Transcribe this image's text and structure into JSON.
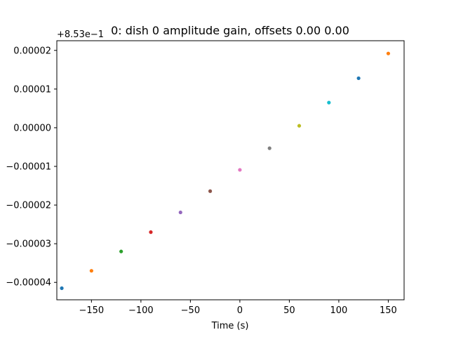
{
  "chart_data": {
    "type": "scatter",
    "title": "0: dish 0 amplitude gain, offsets 0.00 0.00",
    "xlabel": "Time (s)",
    "ylabel": "",
    "offset_label": "+8.53e−1",
    "xlim": [
      -185,
      166
    ],
    "ylim": [
      -4.45e-05,
      2.25e-05
    ],
    "grid": false,
    "x_ticks": [
      -150,
      -100,
      -50,
      0,
      50,
      100,
      150
    ],
    "x_tick_labels": [
      "−150",
      "−100",
      "−50",
      "0",
      "50",
      "100",
      "150"
    ],
    "y_ticks": [
      2e-05,
      1e-05,
      0.0,
      -1e-05,
      -2e-05,
      -3e-05,
      -4e-05
    ],
    "y_tick_labels": [
      "0.00002",
      "0.00001",
      "0.00000",
      "−0.00001",
      "−0.00002",
      "−0.00003",
      "−0.00004"
    ],
    "points": [
      {
        "x": -180,
        "y": -4.15e-05,
        "color": "#1f77b4"
      },
      {
        "x": -150,
        "y": -3.7e-05,
        "color": "#ff7f0e"
      },
      {
        "x": -120,
        "y": -3.2e-05,
        "color": "#2ca02c"
      },
      {
        "x": -90,
        "y": -2.7e-05,
        "color": "#d62728"
      },
      {
        "x": -60,
        "y": -2.19e-05,
        "color": "#9467bd"
      },
      {
        "x": -30,
        "y": -1.64e-05,
        "color": "#8c564b"
      },
      {
        "x": 0,
        "y": -1.09e-05,
        "color": "#e377c2"
      },
      {
        "x": 30,
        "y": -5.3e-06,
        "color": "#7f7f7f"
      },
      {
        "x": 60,
        "y": 5e-07,
        "color": "#bcbd22"
      },
      {
        "x": 90,
        "y": 6.5e-06,
        "color": "#17becf"
      },
      {
        "x": 120,
        "y": 1.28e-05,
        "color": "#1f77b4"
      },
      {
        "x": 150,
        "y": 1.92e-05,
        "color": "#ff7f0e"
      }
    ]
  }
}
